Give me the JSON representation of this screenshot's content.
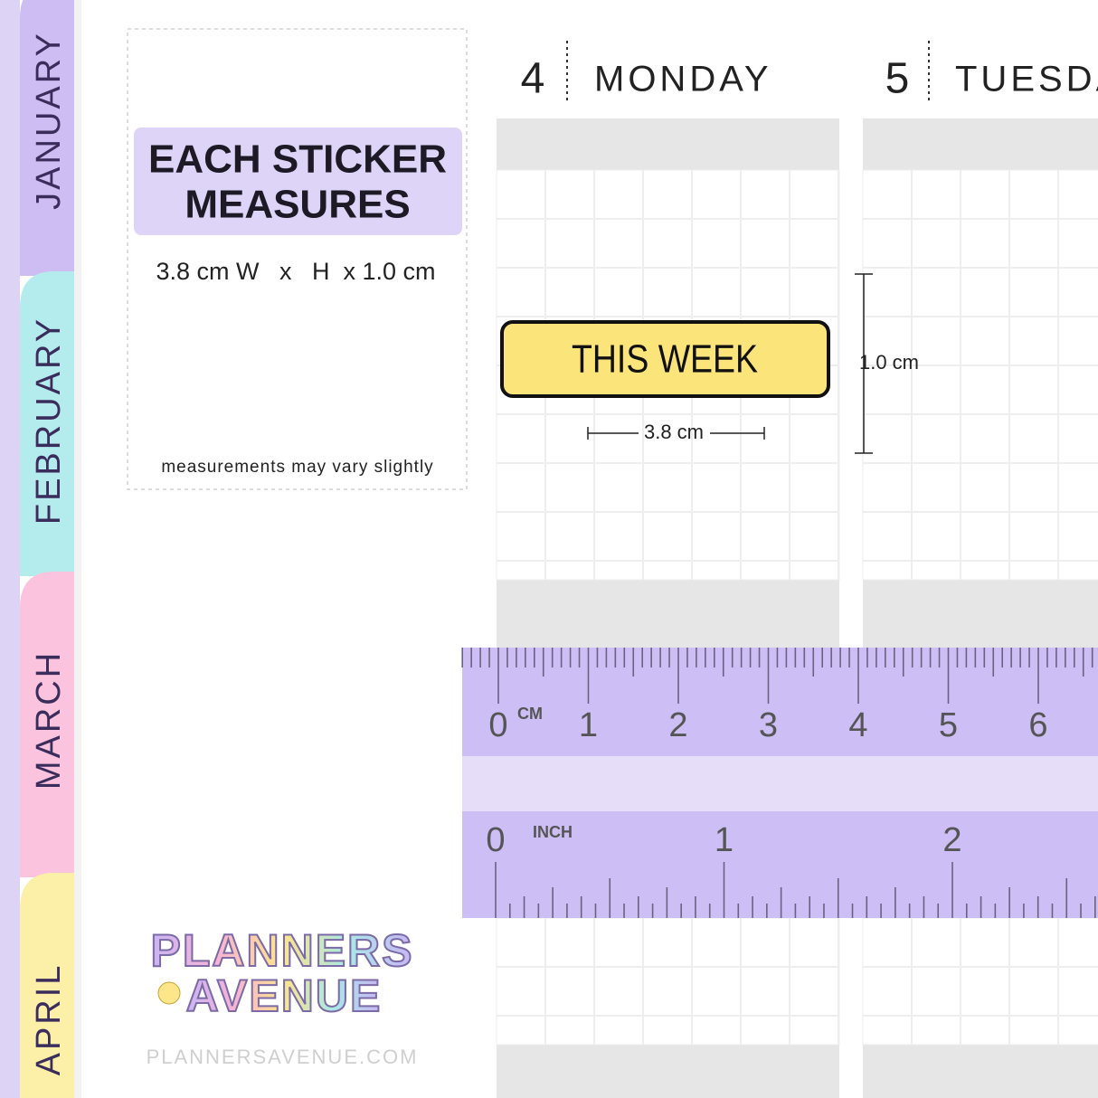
{
  "tabs": [
    "JANUARY",
    "FEBRUARY",
    "MARCH",
    "APRIL"
  ],
  "info": {
    "title_lines": [
      "EACH STICKER",
      "MEASURES"
    ],
    "size": "3.8 cm W   x   H  x 1.0 cm",
    "note": "measurements may vary slightly"
  },
  "days": [
    {
      "number": "4",
      "name": "MONDAY"
    },
    {
      "number": "5",
      "name": "TUESDAY"
    }
  ],
  "sticker": {
    "label": "THIS WEEK",
    "width_label": "3.8 cm",
    "height_label": "1.0 cm"
  },
  "ruler": {
    "cm_unit": "CM",
    "cm_labels": [
      "0",
      "1",
      "2",
      "3",
      "4",
      "5",
      "6"
    ],
    "inch_unit": "INCH",
    "inch_labels": [
      "0",
      "1",
      "2"
    ]
  },
  "logo": [
    "PLANNERS",
    "AVENUE"
  ],
  "website": "PLANNERSAVENUE.COM"
}
